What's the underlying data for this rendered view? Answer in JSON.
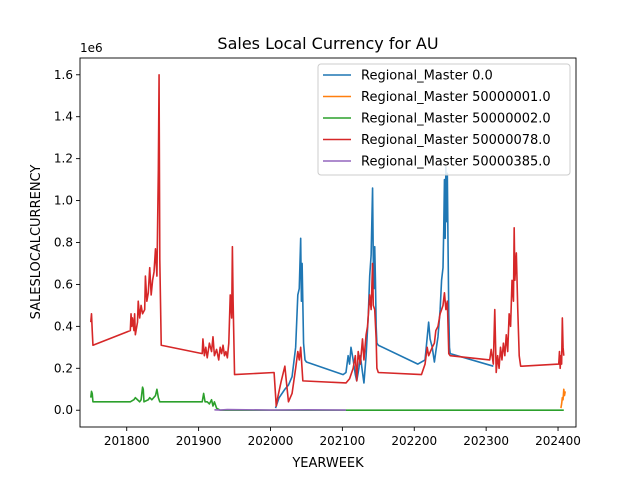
{
  "chart_data": {
    "type": "line",
    "title": "Sales Local Currency for AU",
    "xlabel": "YEARWEEK",
    "ylabel": "SALESLOCALCURRENCY",
    "y_offset_label": "1e6",
    "xlim": [
      201735,
      202425
    ],
    "ylim": [
      -0.08,
      1.68
    ],
    "x_ticks": [
      201800,
      201900,
      202000,
      202100,
      202200,
      202300,
      202400
    ],
    "x_tick_labels": [
      "201800",
      "201900",
      "202000",
      "202100",
      "202200",
      "202300",
      "202400"
    ],
    "y_ticks": [
      0.0,
      0.2,
      0.4,
      0.6,
      0.8,
      1.0,
      1.2,
      1.4,
      1.6
    ],
    "y_tick_labels": [
      "0.0",
      "0.2",
      "0.4",
      "0.6",
      "0.8",
      "1.0",
      "1.2",
      "1.4",
      "1.6"
    ],
    "grid": false,
    "legend_position": "top-right",
    "series": [
      {
        "name": "Regional_Master 0.0",
        "color": "#1f77b4",
        "points": [
          [
            202007,
            0.01
          ],
          [
            202012,
            0.06
          ],
          [
            202020,
            0.1
          ],
          [
            202025,
            0.12
          ],
          [
            202030,
            0.16
          ],
          [
            202035,
            0.3
          ],
          [
            202038,
            0.55
          ],
          [
            202040,
            0.58
          ],
          [
            202042,
            0.82
          ],
          [
            202043,
            0.52
          ],
          [
            202044,
            0.7
          ],
          [
            202046,
            0.32
          ],
          [
            202048,
            0.24
          ],
          [
            202050,
            0.23
          ],
          [
            202101,
            0.17
          ],
          [
            202105,
            0.18
          ],
          [
            202108,
            0.26
          ],
          [
            202110,
            0.22
          ],
          [
            202112,
            0.3
          ],
          [
            202115,
            0.24
          ],
          [
            202118,
            0.17
          ],
          [
            202120,
            0.14
          ],
          [
            202123,
            0.2
          ],
          [
            202125,
            0.26
          ],
          [
            202128,
            0.18
          ],
          [
            202130,
            0.13
          ],
          [
            202133,
            0.26
          ],
          [
            202136,
            0.45
          ],
          [
            202138,
            0.64
          ],
          [
            202140,
            0.74
          ],
          [
            202142,
            1.06
          ],
          [
            202143,
            0.72
          ],
          [
            202144,
            0.58
          ],
          [
            202145,
            0.78
          ],
          [
            202146,
            0.62
          ],
          [
            202147,
            0.4
          ],
          [
            202148,
            0.32
          ],
          [
            202150,
            0.31
          ],
          [
            202205,
            0.22
          ],
          [
            202215,
            0.24
          ],
          [
            202220,
            0.42
          ],
          [
            202222,
            0.34
          ],
          [
            202225,
            0.3
          ],
          [
            202228,
            0.23
          ],
          [
            202230,
            0.28
          ],
          [
            202233,
            0.35
          ],
          [
            202236,
            0.48
          ],
          [
            202238,
            0.62
          ],
          [
            202240,
            0.68
          ],
          [
            202241,
            0.86
          ],
          [
            202242,
            1.1
          ],
          [
            202243,
            0.82
          ],
          [
            202244,
            1.16
          ],
          [
            202245,
            0.9
          ],
          [
            202246,
            1.13
          ],
          [
            202247,
            0.78
          ],
          [
            202248,
            0.46
          ],
          [
            202249,
            0.3
          ],
          [
            202250,
            0.27
          ],
          [
            202310,
            0.21
          ]
        ]
      },
      {
        "name": "Regional_Master 50000001.0",
        "color": "#ff7f0e",
        "points": [
          [
            202404,
            0.01
          ],
          [
            202405,
            0.03
          ],
          [
            202406,
            0.06
          ],
          [
            202407,
            0.05
          ],
          [
            202408,
            0.1
          ],
          [
            202409,
            0.07
          ],
          [
            202410,
            0.09
          ]
        ]
      },
      {
        "name": "Regional_Master 50000002.0",
        "color": "#2ca02c",
        "points": [
          [
            201750,
            0.06
          ],
          [
            201751,
            0.09
          ],
          [
            201752,
            0.08
          ],
          [
            201753,
            0.04
          ],
          [
            201805,
            0.04
          ],
          [
            201810,
            0.05
          ],
          [
            201812,
            0.06
          ],
          [
            201815,
            0.05
          ],
          [
            201818,
            0.04
          ],
          [
            201820,
            0.05
          ],
          [
            201822,
            0.11
          ],
          [
            201823,
            0.1
          ],
          [
            201824,
            0.04
          ],
          [
            201830,
            0.05
          ],
          [
            201832,
            0.06
          ],
          [
            201835,
            0.05
          ],
          [
            201840,
            0.07
          ],
          [
            201842,
            0.1
          ],
          [
            201844,
            0.06
          ],
          [
            201846,
            0.04
          ],
          [
            201905,
            0.04
          ],
          [
            201907,
            0.08
          ],
          [
            201909,
            0.04
          ],
          [
            201912,
            0.04
          ],
          [
            201915,
            0.03
          ],
          [
            201918,
            0.05
          ],
          [
            201920,
            0.02
          ],
          [
            201922,
            0.04
          ],
          [
            201925,
            0.01
          ],
          [
            201930,
            0.0
          ],
          [
            202000,
            0.0
          ],
          [
            202100,
            0.0
          ],
          [
            202200,
            0.0
          ],
          [
            202300,
            0.0
          ],
          [
            202408,
            0.0
          ]
        ]
      },
      {
        "name": "Regional_Master 50000078.0",
        "color": "#d62728",
        "points": [
          [
            201750,
            0.42
          ],
          [
            201751,
            0.46
          ],
          [
            201752,
            0.38
          ],
          [
            201753,
            0.31
          ],
          [
            201805,
            0.38
          ],
          [
            201806,
            0.46
          ],
          [
            201807,
            0.4
          ],
          [
            201808,
            0.44
          ],
          [
            201810,
            0.38
          ],
          [
            201811,
            0.46
          ],
          [
            201812,
            0.36
          ],
          [
            201815,
            0.42
          ],
          [
            201816,
            0.52
          ],
          [
            201818,
            0.44
          ],
          [
            201820,
            0.5
          ],
          [
            201822,
            0.46
          ],
          [
            201825,
            0.48
          ],
          [
            201826,
            0.64
          ],
          [
            201828,
            0.52
          ],
          [
            201830,
            0.56
          ],
          [
            201832,
            0.68
          ],
          [
            201834,
            0.55
          ],
          [
            201836,
            0.62
          ],
          [
            201838,
            0.66
          ],
          [
            201840,
            0.77
          ],
          [
            201842,
            0.64
          ],
          [
            201844,
            1.15
          ],
          [
            201845,
            1.6
          ],
          [
            201846,
            0.72
          ],
          [
            201848,
            0.31
          ],
          [
            201905,
            0.27
          ],
          [
            201906,
            0.34
          ],
          [
            201908,
            0.26
          ],
          [
            201910,
            0.3
          ],
          [
            201912,
            0.25
          ],
          [
            201915,
            0.32
          ],
          [
            201918,
            0.28
          ],
          [
            201920,
            0.35
          ],
          [
            201922,
            0.26
          ],
          [
            201925,
            0.29
          ],
          [
            201928,
            0.24
          ],
          [
            201930,
            0.3
          ],
          [
            201932,
            0.27
          ],
          [
            201934,
            0.31
          ],
          [
            201936,
            0.26
          ],
          [
            201938,
            0.28
          ],
          [
            201940,
            0.25
          ],
          [
            201942,
            0.32
          ],
          [
            201944,
            0.55
          ],
          [
            201946,
            0.44
          ],
          [
            201947,
            0.78
          ],
          [
            201948,
            0.52
          ],
          [
            201950,
            0.17
          ],
          [
            202005,
            0.18
          ],
          [
            202008,
            0.02
          ],
          [
            202010,
            0.06
          ],
          [
            202015,
            0.14
          ],
          [
            202020,
            0.21
          ],
          [
            202022,
            0.14
          ],
          [
            202025,
            0.04
          ],
          [
            202030,
            0.08
          ],
          [
            202035,
            0.2
          ],
          [
            202038,
            0.28
          ],
          [
            202040,
            0.24
          ],
          [
            202042,
            0.3
          ],
          [
            202045,
            0.14
          ],
          [
            202105,
            0.13
          ],
          [
            202110,
            0.15
          ],
          [
            202115,
            0.2
          ],
          [
            202118,
            0.26
          ],
          [
            202120,
            0.14
          ],
          [
            202122,
            0.28
          ],
          [
            202125,
            0.22
          ],
          [
            202128,
            0.34
          ],
          [
            202130,
            0.24
          ],
          [
            202133,
            0.36
          ],
          [
            202135,
            0.4
          ],
          [
            202138,
            0.55
          ],
          [
            202140,
            0.48
          ],
          [
            202142,
            0.7
          ],
          [
            202143,
            0.5
          ],
          [
            202145,
            0.48
          ],
          [
            202147,
            0.34
          ],
          [
            202148,
            0.2
          ],
          [
            202150,
            0.18
          ],
          [
            202210,
            0.17
          ],
          [
            202215,
            0.22
          ],
          [
            202218,
            0.3
          ],
          [
            202220,
            0.26
          ],
          [
            202225,
            0.3
          ],
          [
            202228,
            0.32
          ],
          [
            202230,
            0.38
          ],
          [
            202233,
            0.4
          ],
          [
            202236,
            0.46
          ],
          [
            202238,
            0.48
          ],
          [
            202240,
            0.5
          ],
          [
            202242,
            0.56
          ],
          [
            202244,
            0.48
          ],
          [
            202246,
            0.52
          ],
          [
            202247,
            0.4
          ],
          [
            202248,
            0.27
          ],
          [
            202250,
            0.26
          ],
          [
            202305,
            0.24
          ],
          [
            202307,
            0.29
          ],
          [
            202310,
            0.22
          ],
          [
            202312,
            0.48
          ],
          [
            202314,
            0.18
          ],
          [
            202316,
            0.26
          ],
          [
            202318,
            0.2
          ],
          [
            202320,
            0.3
          ],
          [
            202322,
            0.24
          ],
          [
            202324,
            0.32
          ],
          [
            202326,
            0.26
          ],
          [
            202328,
            0.36
          ],
          [
            202330,
            0.28
          ],
          [
            202332,
            0.46
          ],
          [
            202334,
            0.4
          ],
          [
            202336,
            0.62
          ],
          [
            202338,
            0.52
          ],
          [
            202339,
            0.87
          ],
          [
            202340,
            0.62
          ],
          [
            202342,
            0.75
          ],
          [
            202344,
            0.48
          ],
          [
            202346,
            0.26
          ],
          [
            202348,
            0.21
          ],
          [
            202350,
            0.21
          ],
          [
            202401,
            0.22
          ],
          [
            202402,
            0.28
          ],
          [
            202403,
            0.2
          ],
          [
            202404,
            0.26
          ],
          [
            202405,
            0.22
          ],
          [
            202406,
            0.44
          ],
          [
            202407,
            0.3
          ],
          [
            202408,
            0.26
          ]
        ]
      },
      {
        "name": "Regional_Master 50000385.0",
        "color": "#9467bd",
        "points": [
          [
            201922,
            0.002
          ],
          [
            201930,
            0.001
          ],
          [
            201940,
            0.003
          ],
          [
            202000,
            0.001
          ],
          [
            202050,
            0.002
          ],
          [
            202105,
            0.001
          ]
        ]
      }
    ]
  }
}
